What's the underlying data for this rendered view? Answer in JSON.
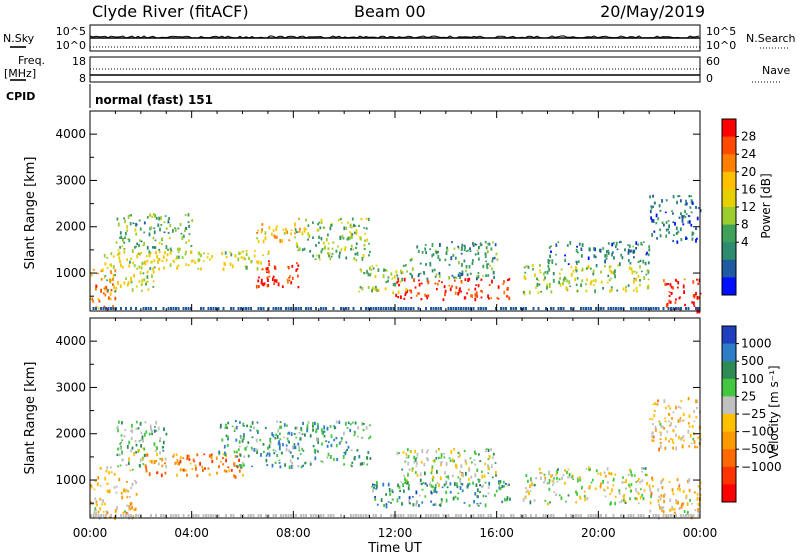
{
  "header": {
    "site": "Clyde River (fitACF)",
    "beam": "Beam 00",
    "date": "20/May/2019"
  },
  "top_panels": {
    "nsky_label": "N.Sky",
    "nsky_ticks": [
      "10^5",
      "10^0"
    ],
    "nsearch_label": "N.Search",
    "nsearch_ticks": [
      "10^5",
      "10^0"
    ],
    "freq_label": "Freq.",
    "freq_unit": "[MHz]",
    "freq_ticks": [
      "18",
      "8"
    ],
    "nave_label": "Nave",
    "nave_ticks": [
      "60",
      "0"
    ],
    "cpid_label": "CPID",
    "cpid_value": "normal (fast) 151"
  },
  "chart_data": [
    {
      "type": "heatmap",
      "name": "power",
      "ylabel": "Slant Range [km]",
      "ylim": [
        180,
        4500
      ],
      "yticks": [
        "1000",
        "2000",
        "3000",
        "4000"
      ],
      "xlim": [
        0,
        24
      ],
      "colorbar": {
        "label": "Power [dB]",
        "ticks": [
          "28",
          "24",
          "20",
          "16",
          "12",
          "8",
          "4"
        ],
        "colors": [
          "#ff0000",
          "#ff4a00",
          "#ff7f00",
          "#ffc000",
          "#e6d000",
          "#9bcd30",
          "#3da15a",
          "#2e8b6e",
          "#1f5aa0",
          "#0010ff"
        ]
      },
      "features": [
        {
          "t0": 0.0,
          "t1": 1.0,
          "r0": 200,
          "r1": 1100,
          "level": 0.75
        },
        {
          "t0": 0.5,
          "t1": 2.5,
          "r0": 600,
          "r1": 1500,
          "level": 0.5
        },
        {
          "t0": 1.0,
          "t1": 4.0,
          "r0": 1500,
          "r1": 2300,
          "level": 0.35
        },
        {
          "t0": 2.0,
          "t1": 7.0,
          "r0": 1100,
          "r1": 1500,
          "level": 0.55
        },
        {
          "t0": 6.5,
          "t1": 8.2,
          "r0": 700,
          "r1": 1300,
          "level": 0.9
        },
        {
          "t0": 6.5,
          "t1": 8.5,
          "r0": 1700,
          "r1": 2100,
          "level": 0.65
        },
        {
          "t0": 8.0,
          "t1": 11.0,
          "r0": 1300,
          "r1": 2200,
          "level": 0.4
        },
        {
          "t0": 12.0,
          "t1": 16.5,
          "r0": 450,
          "r1": 900,
          "level": 0.92
        },
        {
          "t0": 10.5,
          "t1": 12.5,
          "r0": 600,
          "r1": 1200,
          "level": 0.45
        },
        {
          "t0": 12.5,
          "t1": 16.0,
          "r0": 900,
          "r1": 1700,
          "level": 0.3
        },
        {
          "t0": 17.0,
          "t1": 22.0,
          "r0": 600,
          "r1": 1200,
          "level": 0.45
        },
        {
          "t0": 18.0,
          "t1": 22.0,
          "r0": 1200,
          "r1": 1700,
          "level": 0.25
        },
        {
          "t0": 22.5,
          "t1": 24.0,
          "r0": 200,
          "r1": 900,
          "level": 0.95
        },
        {
          "t0": 22.0,
          "t1": 24.0,
          "r0": 1700,
          "r1": 2700,
          "level": 0.2
        }
      ]
    },
    {
      "type": "heatmap",
      "name": "velocity",
      "ylabel": "Slant Range [km]",
      "ylim": [
        180,
        4500
      ],
      "yticks": [
        "1000",
        "2000",
        "3000",
        "4000"
      ],
      "xlabel": "Time UT",
      "xlim": [
        0,
        24
      ],
      "xticks": [
        "00:00",
        "04:00",
        "08:00",
        "12:00",
        "16:00",
        "20:00",
        "00:00"
      ],
      "colorbar": {
        "label": "Velocity [m s⁻¹]",
        "ticks": [
          "1000",
          "500",
          "100",
          "25",
          "−25",
          "−100",
          "−500",
          "−1000"
        ],
        "colors": [
          "#1f3fbf",
          "#2e7dc7",
          "#2e8b57",
          "#45c640",
          "#c0c0c0",
          "#ffc000",
          "#ff9900",
          "#ff6a00",
          "#ff3300",
          "#ff0000"
        ]
      },
      "features": [
        {
          "t0": 0.0,
          "t1": 1.8,
          "r0": 200,
          "r1": 1300,
          "level": 0.45
        },
        {
          "t0": 1.0,
          "t1": 3.0,
          "r0": 1300,
          "r1": 2300,
          "level": 0.65
        },
        {
          "t0": 2.0,
          "t1": 6.0,
          "r0": 1100,
          "r1": 1600,
          "level": 0.3
        },
        {
          "t0": 5.0,
          "t1": 11.0,
          "r0": 1300,
          "r1": 2300,
          "level": 0.72
        },
        {
          "t0": 11.0,
          "t1": 16.5,
          "r0": 450,
          "r1": 1000,
          "level": 0.75
        },
        {
          "t0": 12.0,
          "t1": 16.0,
          "r0": 900,
          "r1": 1700,
          "level": 0.6
        },
        {
          "t0": 17.0,
          "t1": 22.0,
          "r0": 500,
          "r1": 1300,
          "level": 0.55
        },
        {
          "t0": 22.0,
          "t1": 24.0,
          "r0": 200,
          "r1": 1100,
          "level": 0.45
        },
        {
          "t0": 22.0,
          "t1": 24.0,
          "r0": 1700,
          "r1": 2800,
          "level": 0.45
        }
      ]
    }
  ]
}
